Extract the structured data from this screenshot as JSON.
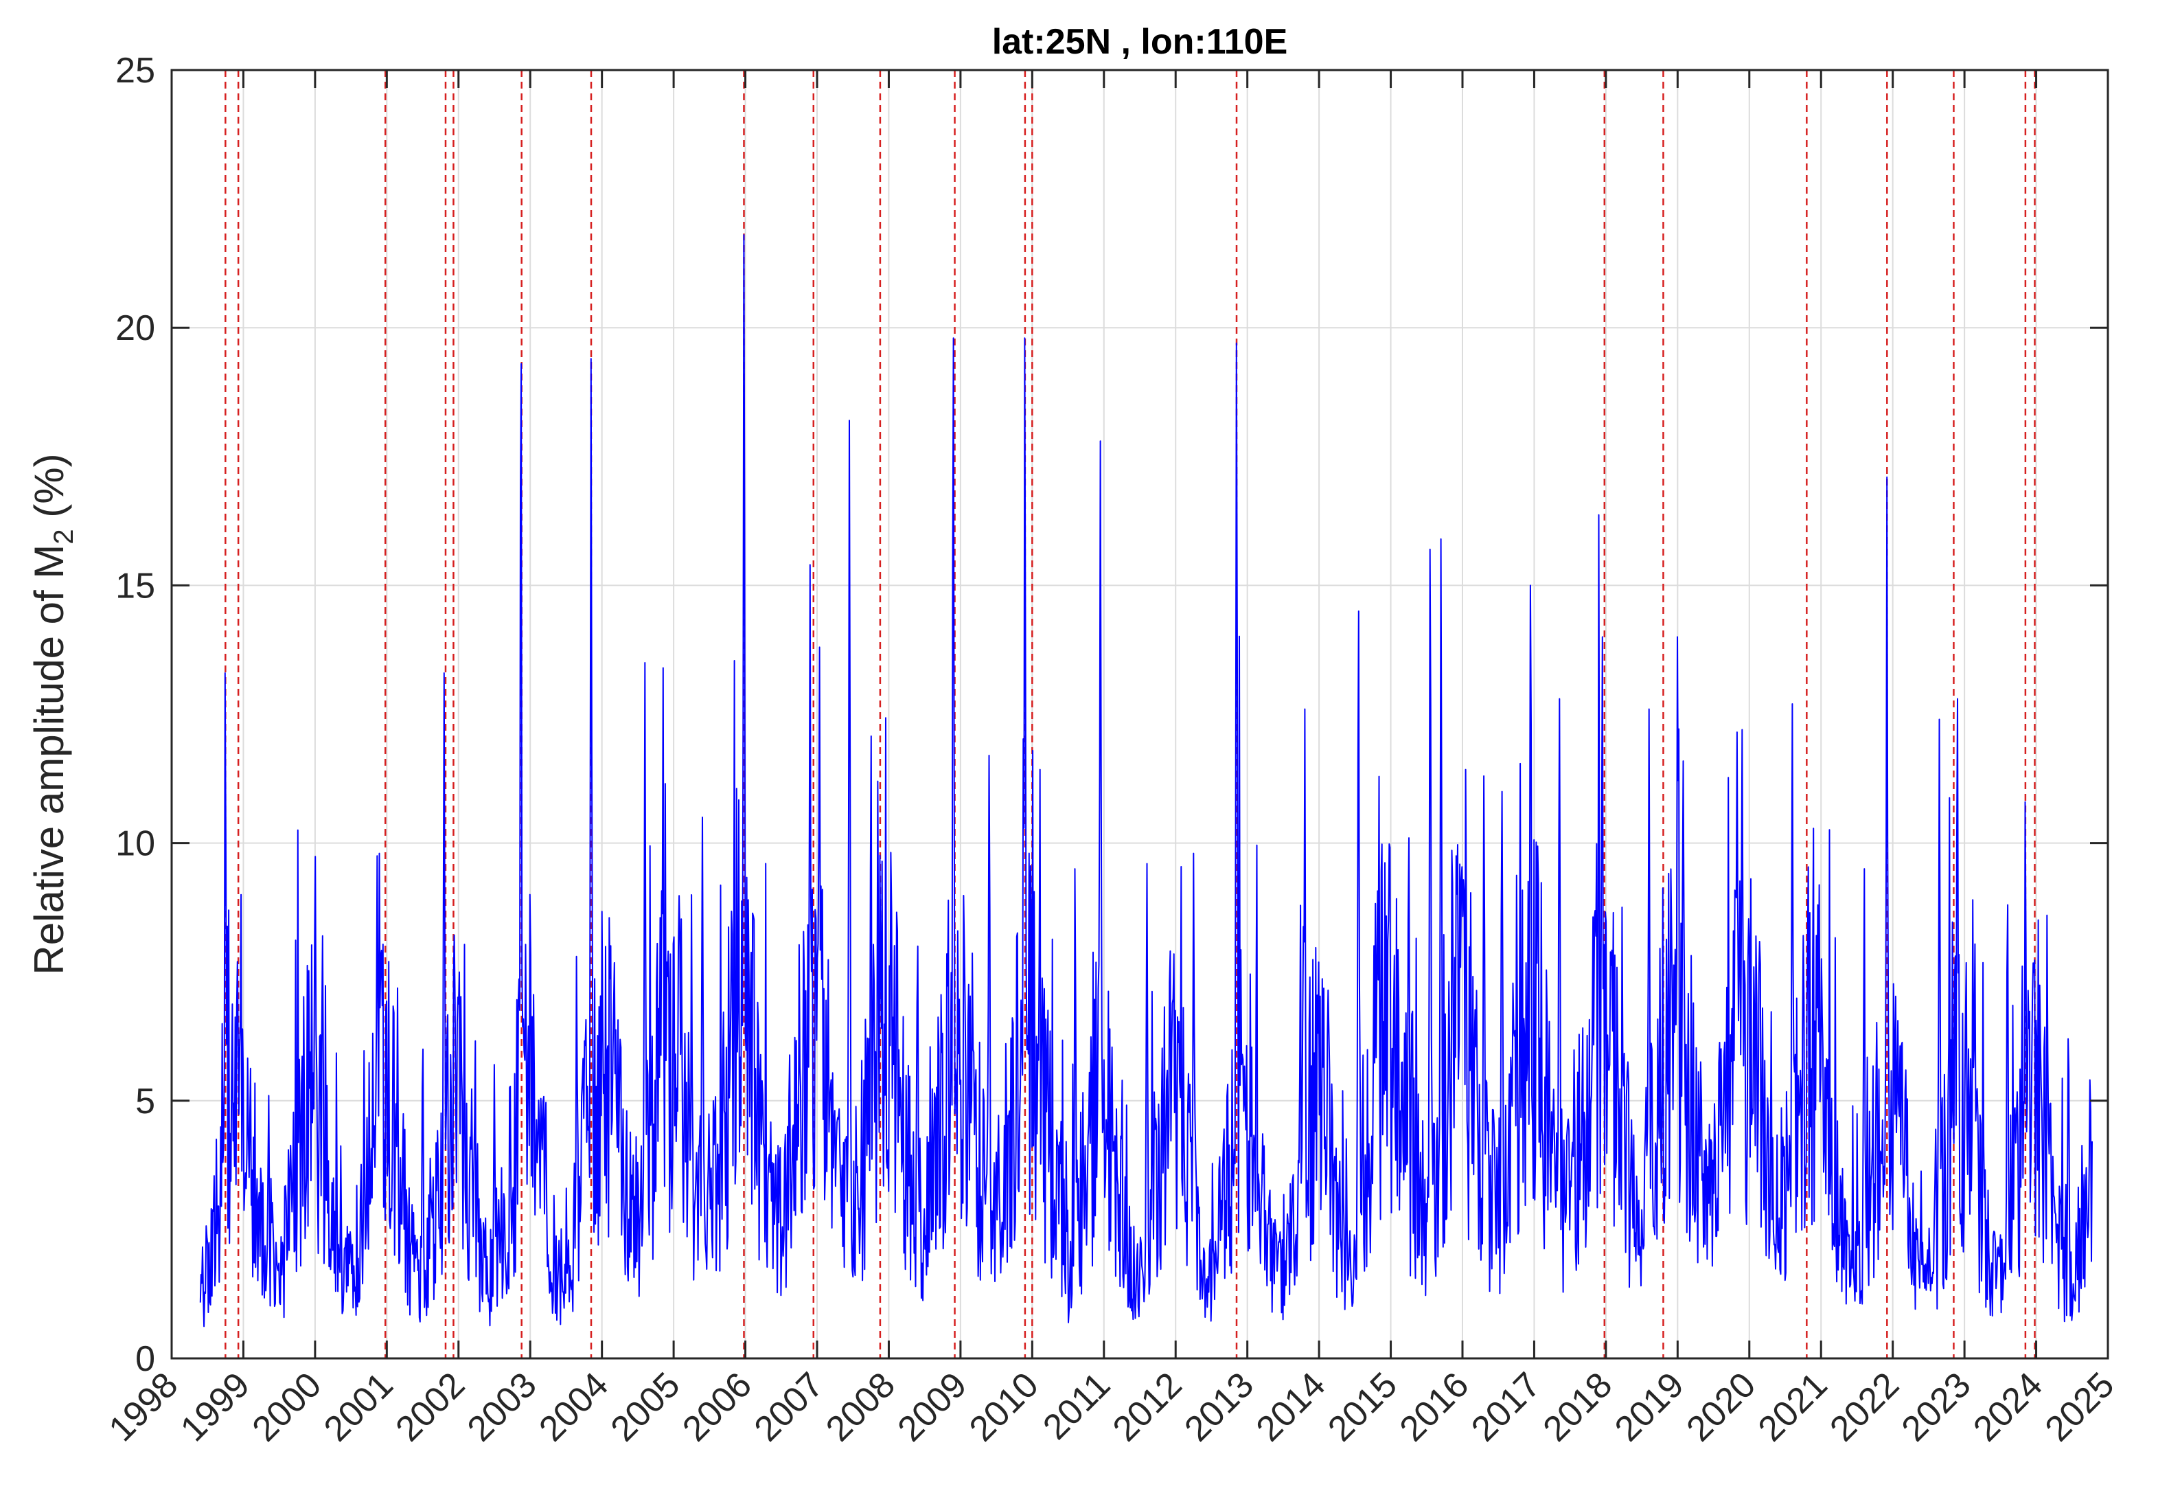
{
  "chart_data": {
    "type": "line",
    "title": "lat:25N , lon:110E",
    "ylabel": {
      "main": "Relative amplitude of M",
      "subscript": "2",
      "suffix": " (%)"
    },
    "xlabel": "",
    "xlim": [
      "1998-01-01",
      "2025-01-01"
    ],
    "ylim": [
      0,
      25
    ],
    "grid": true,
    "x_ticks": [
      "1998",
      "1999",
      "2000",
      "2001",
      "2002",
      "2003",
      "2004",
      "2005",
      "2006",
      "2007",
      "2008",
      "2009",
      "2010",
      "2011",
      "2012",
      "2013",
      "2014",
      "2015",
      "2016",
      "2017",
      "2018",
      "2019",
      "2020",
      "2021",
      "2022",
      "2023",
      "2024",
      "2025"
    ],
    "y_ticks": [
      "0",
      "5",
      "10",
      "15",
      "20",
      "25"
    ],
    "series_color": "#0000ff",
    "event_line_color": "#d62020",
    "event_lines": [
      1998.75,
      1998.93,
      2000.98,
      2001.82,
      2001.93,
      2002.88,
      2003.85,
      2005.98,
      2006.95,
      2007.88,
      2008.92,
      2009.9,
      2010.0,
      2012.85,
      2017.98,
      2018.8,
      2020.8,
      2021.92,
      2022.85,
      2023.85,
      2023.98
    ],
    "peaks": [
      {
        "x": 1998.75,
        "y": 13.3
      },
      {
        "x": 1998.92,
        "y": 7.7
      },
      {
        "x": 1999.35,
        "y": 5.1
      },
      {
        "x": 2000.1,
        "y": 8.2
      },
      {
        "x": 2000.9,
        "y": 9.8
      },
      {
        "x": 2001.5,
        "y": 6.0
      },
      {
        "x": 2001.8,
        "y": 13.3
      },
      {
        "x": 2002.5,
        "y": 5.7
      },
      {
        "x": 2002.87,
        "y": 19.3
      },
      {
        "x": 2003.0,
        "y": 9.0
      },
      {
        "x": 2003.65,
        "y": 7.8
      },
      {
        "x": 2003.85,
        "y": 19.4
      },
      {
        "x": 2004.6,
        "y": 13.5
      },
      {
        "x": 2004.85,
        "y": 13.4
      },
      {
        "x": 2005.4,
        "y": 10.5
      },
      {
        "x": 2005.98,
        "y": 21.8
      },
      {
        "x": 2006.9,
        "y": 15.4
      },
      {
        "x": 2007.03,
        "y": 13.8
      },
      {
        "x": 2007.45,
        "y": 18.2
      },
      {
        "x": 2007.85,
        "y": 11.2
      },
      {
        "x": 2008.4,
        "y": 8.0
      },
      {
        "x": 2008.9,
        "y": 19.8
      },
      {
        "x": 2009.4,
        "y": 11.7
      },
      {
        "x": 2009.9,
        "y": 19.8
      },
      {
        "x": 2010.6,
        "y": 9.5
      },
      {
        "x": 2010.95,
        "y": 17.8
      },
      {
        "x": 2011.6,
        "y": 9.6
      },
      {
        "x": 2012.25,
        "y": 9.8
      },
      {
        "x": 2012.85,
        "y": 19.7
      },
      {
        "x": 2013.8,
        "y": 12.6
      },
      {
        "x": 2014.55,
        "y": 14.5
      },
      {
        "x": 2015.25,
        "y": 10.1
      },
      {
        "x": 2015.55,
        "y": 15.7
      },
      {
        "x": 2015.7,
        "y": 15.9
      },
      {
        "x": 2016.3,
        "y": 11.3
      },
      {
        "x": 2016.55,
        "y": 11.0
      },
      {
        "x": 2016.95,
        "y": 15.0
      },
      {
        "x": 2017.35,
        "y": 12.8
      },
      {
        "x": 2017.95,
        "y": 14.0
      },
      {
        "x": 2018.6,
        "y": 12.6
      },
      {
        "x": 2019.0,
        "y": 14.0
      },
      {
        "x": 2019.9,
        "y": 12.2
      },
      {
        "x": 2020.6,
        "y": 12.7
      },
      {
        "x": 2020.95,
        "y": 8.8
      },
      {
        "x": 2021.6,
        "y": 9.5
      },
      {
        "x": 2021.92,
        "y": 17.1
      },
      {
        "x": 2022.65,
        "y": 12.4
      },
      {
        "x": 2022.9,
        "y": 12.8
      },
      {
        "x": 2023.6,
        "y": 8.8
      },
      {
        "x": 2023.85,
        "y": 10.8
      },
      {
        "x": 2024.45,
        "y": 6.2
      }
    ]
  }
}
